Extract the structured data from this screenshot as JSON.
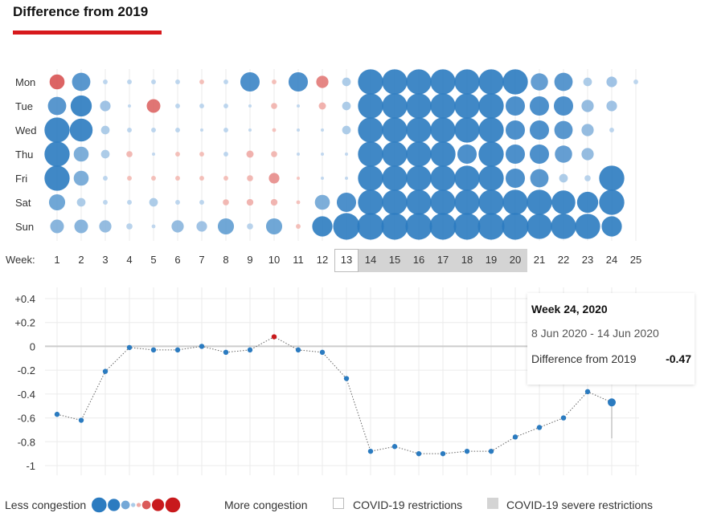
{
  "header": {
    "title": "Difference from 2019"
  },
  "colors": {
    "accent": "#d7191c",
    "less": "#2b7bc0",
    "more": "#c8191c",
    "severe_band": "#d4d4d4"
  },
  "chart_data": [
    {
      "type": "bubble-matrix",
      "days": [
        "Mon",
        "Tue",
        "Wed",
        "Thu",
        "Fri",
        "Sat",
        "Sun"
      ],
      "week_label": "Week:",
      "weeks": [
        "1",
        "2",
        "3",
        "4",
        "5",
        "6",
        "7",
        "8",
        "9",
        "10",
        "11",
        "12",
        "13",
        "14",
        "15",
        "16",
        "17",
        "18",
        "19",
        "20",
        "21",
        "22",
        "23",
        "24",
        "25"
      ],
      "restrictions_week": "13",
      "severe_weeks": [
        "14",
        "15",
        "16",
        "17",
        "18",
        "19",
        "20"
      ],
      "note": "values are difference from 2019; negative = less congestion (blue), positive = more congestion (red)",
      "values": [
        [
          0.3,
          -0.45,
          -0.03,
          -0.03,
          -0.03,
          -0.03,
          0.03,
          -0.03,
          -0.5,
          0.03,
          -0.5,
          0.2,
          -0.1,
          -0.85,
          -0.85,
          -0.85,
          -0.85,
          -0.85,
          -0.85,
          -0.85,
          -0.4,
          -0.45,
          -0.1,
          -0.15,
          -0.03
        ],
        [
          -0.45,
          -0.6,
          -0.15,
          -0.01,
          0.25,
          -0.03,
          -0.03,
          -0.03,
          -0.01,
          0.05,
          -0.01,
          0.07,
          -0.1,
          -0.85,
          -0.85,
          -0.85,
          -0.85,
          -0.85,
          -0.85,
          -0.5,
          -0.5,
          -0.5,
          -0.2,
          -0.15,
          null
        ],
        [
          -0.85,
          -0.7,
          -0.1,
          -0.03,
          -0.03,
          -0.03,
          -0.01,
          -0.03,
          -0.01,
          0.02,
          -0.01,
          -0.01,
          -0.1,
          -0.85,
          -0.85,
          -0.85,
          -0.85,
          -0.85,
          -0.85,
          -0.5,
          -0.5,
          -0.45,
          -0.2,
          -0.03,
          null
        ],
        [
          -0.85,
          -0.3,
          -0.1,
          0.05,
          -0.01,
          0.03,
          0.03,
          -0.03,
          0.07,
          0.05,
          -0.01,
          -0.01,
          -0.01,
          -0.85,
          -0.85,
          -0.85,
          -0.85,
          -0.5,
          -0.85,
          -0.5,
          -0.5,
          -0.4,
          -0.2,
          null,
          null
        ],
        [
          -0.85,
          -0.3,
          -0.03,
          0.03,
          0.03,
          0.03,
          0.03,
          0.03,
          0.05,
          0.15,
          0.01,
          -0.01,
          -0.01,
          -0.85,
          -0.85,
          -0.85,
          -0.85,
          -0.85,
          -0.85,
          -0.5,
          -0.45,
          -0.1,
          -0.05,
          -0.85,
          null
        ],
        [
          -0.35,
          -0.1,
          -0.03,
          -0.03,
          -0.1,
          -0.03,
          -0.03,
          0.05,
          0.06,
          0.06,
          0.02,
          -0.3,
          -0.5,
          -0.85,
          -0.85,
          -0.85,
          -0.85,
          -0.85,
          -0.85,
          -0.85,
          -0.85,
          -0.75,
          -0.6,
          -0.85,
          null
        ],
        [
          -0.25,
          -0.25,
          -0.2,
          -0.05,
          -0.02,
          -0.2,
          -0.15,
          -0.35,
          -0.05,
          -0.35,
          0.03,
          -0.55,
          -0.95,
          -0.95,
          -0.95,
          -0.95,
          -0.95,
          -0.95,
          -0.95,
          -0.95,
          -0.85,
          -0.85,
          -0.85,
          -0.55,
          null
        ]
      ]
    },
    {
      "type": "line",
      "x": [
        "1",
        "2",
        "3",
        "4",
        "5",
        "6",
        "7",
        "8",
        "9",
        "10",
        "11",
        "12",
        "13",
        "14",
        "15",
        "16",
        "17",
        "18",
        "19",
        "20",
        "21",
        "22",
        "23",
        "24"
      ],
      "values": [
        -0.57,
        -0.62,
        -0.21,
        -0.01,
        -0.03,
        -0.03,
        0.0,
        -0.05,
        -0.03,
        0.08,
        -0.03,
        -0.05,
        -0.27,
        -0.88,
        -0.84,
        -0.9,
        -0.9,
        -0.88,
        -0.88,
        -0.76,
        -0.68,
        -0.6,
        -0.38,
        -0.47
      ],
      "ylim": [
        -1.05,
        0.45
      ],
      "yticks": [
        0.4,
        0.2,
        0,
        -0.2,
        -0.4,
        -0.6,
        -0.8,
        -1
      ],
      "ytick_labels": [
        "+0.4",
        "+0.2",
        "0",
        "-0.2",
        "-0.4",
        "-0.6",
        "-0.8",
        "-1"
      ],
      "grid": true,
      "highlight_week": "24"
    }
  ],
  "tooltip": {
    "title": "Week 24, 2020",
    "dates": "8 Jun 2020 - 14 Jun 2020",
    "label": "Difference from 2019",
    "value": "-0.47"
  },
  "legend": {
    "less": "Less congestion",
    "more": "More congestion",
    "restrictions": "COVID-19 restrictions",
    "severe": "COVID-19 severe restrictions",
    "scale": [
      -0.6,
      -0.4,
      -0.2,
      -0.05,
      0.05,
      0.2,
      0.4,
      0.6
    ]
  }
}
